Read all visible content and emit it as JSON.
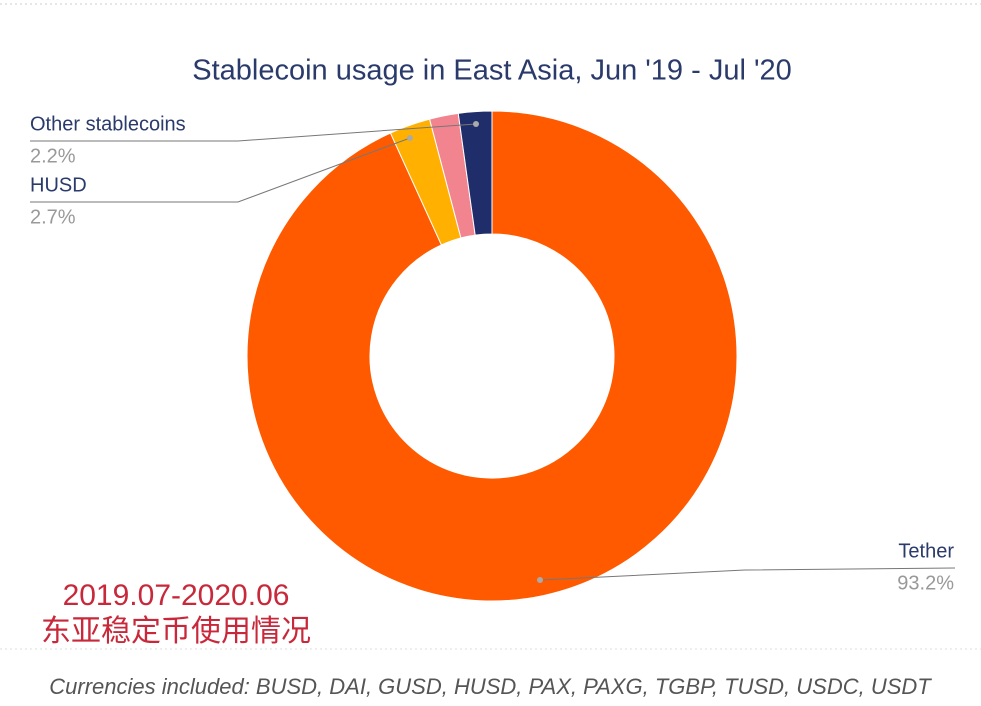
{
  "chart_data": {
    "type": "donut",
    "title": "Stablecoin usage in East Asia, Jun '19 - Jul '20",
    "categories": [
      "Tether",
      "HUSD",
      null,
      "Other stablecoins"
    ],
    "values": [
      93.2,
      2.7,
      1.9,
      2.2
    ],
    "value_labels": [
      "93.2%",
      "2.7%",
      null,
      "2.2%"
    ],
    "colors": [
      "#ff5a00",
      "#ffb000",
      "#f2848f",
      "#1f2d6b"
    ],
    "annotation": [
      "2019.07-2020.06",
      "东亚稳定币使用情况"
    ],
    "footnote": "Currencies included: BUSD, DAI, GUSD, HUSD, PAX, PAXG, TGBP, TUSD, USDC, USDT"
  }
}
